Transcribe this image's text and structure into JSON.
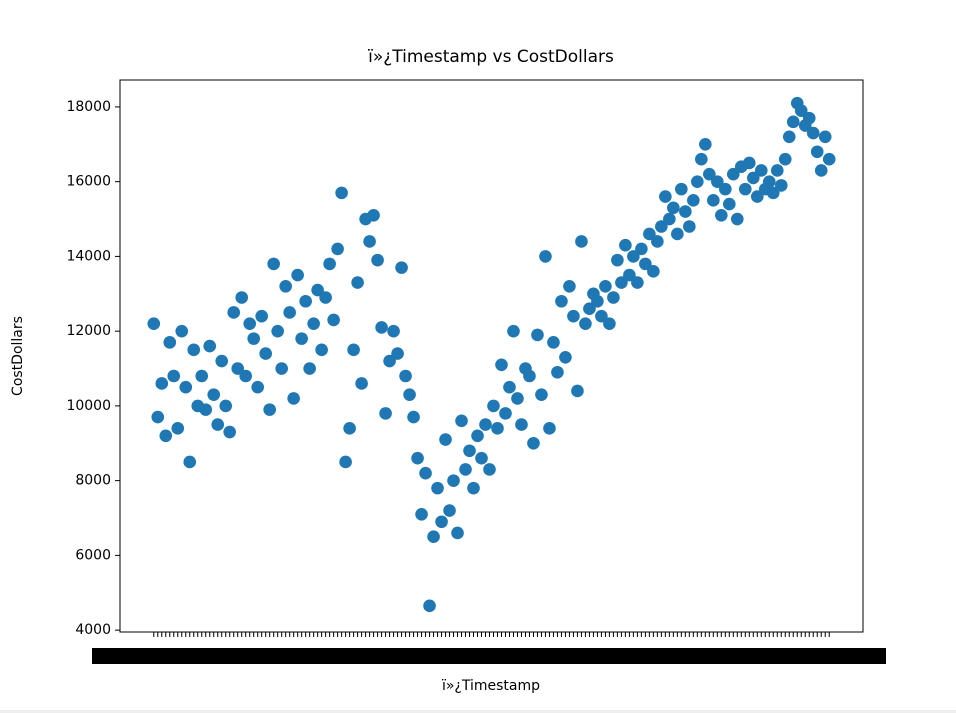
{
  "chart_data": {
    "type": "scatter",
    "title": "ï»¿Timestamp vs CostDollars",
    "x_label": "ï»¿Timestamp",
    "y_label": "CostDollars",
    "color": "#1f77b4",
    "categories": [
      null,
      null,
      null,
      null,
      null,
      null,
      null,
      null,
      null,
      null,
      null,
      null,
      null,
      null,
      null,
      null,
      null,
      null,
      null,
      null,
      null,
      null,
      null,
      null,
      null,
      null,
      null,
      null,
      null,
      null,
      null,
      null,
      null,
      null,
      null,
      null,
      null,
      null,
      null,
      null,
      null,
      null,
      null,
      null,
      null,
      null,
      null,
      null,
      null,
      null,
      null,
      null,
      null,
      null,
      null,
      null,
      null,
      null,
      null,
      null,
      null,
      null,
      null,
      null,
      null,
      null,
      null,
      null,
      null,
      null,
      null,
      null,
      null,
      null,
      null,
      null,
      null,
      null,
      null,
      null,
      null,
      null,
      null,
      null,
      null,
      null,
      null,
      null,
      null,
      null,
      null,
      null,
      null,
      null,
      null,
      null,
      null,
      null,
      null,
      null,
      null,
      null,
      null,
      null,
      null,
      null,
      null,
      null,
      null,
      null,
      null,
      null,
      null,
      null,
      null,
      null,
      null,
      null,
      null,
      null,
      null,
      null,
      null,
      null,
      null,
      null,
      null,
      null,
      null,
      null,
      null,
      null,
      null,
      null,
      null,
      null,
      null,
      null,
      null,
      null,
      null,
      null,
      null,
      null,
      null,
      null,
      null,
      null,
      null,
      null,
      null,
      null,
      null,
      null,
      null,
      null,
      null,
      null,
      null,
      null,
      null,
      null,
      null,
      null,
      null,
      null,
      null,
      null,
      null,
      null
    ],
    "values": [
      12200,
      9700,
      10600,
      9200,
      11700,
      10800,
      9400,
      12000,
      10500,
      8500,
      11500,
      10000,
      10800,
      9900,
      11600,
      10300,
      9500,
      11200,
      10000,
      9300,
      12500,
      11000,
      12900,
      10800,
      12200,
      11800,
      10500,
      12400,
      11400,
      9900,
      13800,
      12000,
      11000,
      13200,
      12500,
      10200,
      13500,
      11800,
      12800,
      11000,
      12200,
      13100,
      11500,
      12900,
      13800,
      12300,
      14200,
      15700,
      8500,
      9400,
      11500,
      13300,
      10600,
      15000,
      14400,
      15100,
      13900,
      12100,
      9800,
      11200,
      12000,
      11400,
      13700,
      10800,
      10300,
      9700,
      8600,
      7100,
      8200,
      4650,
      6500,
      7800,
      6900,
      9100,
      7200,
      8000,
      6600,
      9600,
      8300,
      8800,
      7800,
      9200,
      8600,
      9500,
      8300,
      10000,
      9400,
      11100,
      9800,
      10500,
      12000,
      10200,
      9500,
      11000,
      10800,
      9000,
      11900,
      10300,
      14000,
      9400,
      11700,
      10900,
      12800,
      11300,
      13200,
      12400,
      10400,
      14400,
      12200,
      12600,
      13000,
      12800,
      12400,
      13200,
      12200,
      12900,
      13900,
      13300,
      14300,
      13500,
      14000,
      13300,
      14200,
      13800,
      14600,
      13600,
      14400,
      14800,
      15600,
      15000,
      15300,
      14600,
      15800,
      15200,
      14800,
      15500,
      16000,
      16600,
      17000,
      16200,
      15500,
      16000,
      15100,
      15800,
      15400,
      16200,
      15000,
      16400,
      15800,
      16500,
      16100,
      15600,
      16300,
      15800,
      16000,
      15700,
      16300,
      15900,
      16600,
      17200,
      17600,
      18100,
      17900,
      17500,
      17700,
      17300,
      16800,
      16300,
      17200,
      16600
    ],
    "ylim": [
      3950,
      18720
    ],
    "yticks": [
      4000,
      6000,
      8000,
      10000,
      12000,
      14000,
      16000,
      18000
    ]
  }
}
